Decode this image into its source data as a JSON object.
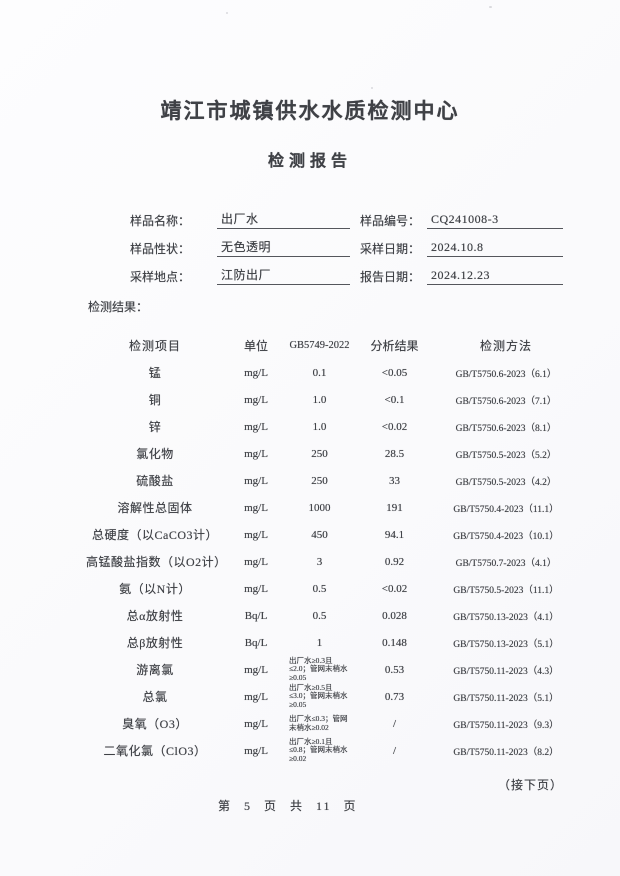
{
  "title": "靖江市城镇供水水质检测中心",
  "subtitle": "检测报告",
  "info": {
    "rows": [
      {
        "left_label": "样品名称：",
        "left_value": "出厂水",
        "right_label": "样品编号：",
        "right_value": "CQ241008-3"
      },
      {
        "left_label": "样品性状：",
        "left_value": "无色透明",
        "right_label": "采样日期：",
        "right_value": "2024.10.8"
      },
      {
        "left_label": "采样地点：",
        "left_value": "江防出厂",
        "right_label": "报告日期：",
        "right_value": "2024.12.23"
      }
    ]
  },
  "results_label": "检测结果：",
  "table": {
    "headers": [
      "检测项目",
      "单位",
      "GB5749-2022",
      "分析结果",
      "检测方法"
    ],
    "rows": [
      [
        "锰",
        "mg/L",
        "0.1",
        "<0.05",
        "GB/T5750.6-2023（6.1）"
      ],
      [
        "铜",
        "mg/L",
        "1.0",
        "<0.1",
        "GB/T5750.6-2023（7.1）"
      ],
      [
        "锌",
        "mg/L",
        "1.0",
        "<0.02",
        "GB/T5750.6-2023（8.1）"
      ],
      [
        "氯化物",
        "mg/L",
        "250",
        "28.5",
        "GB/T5750.5-2023（5.2）"
      ],
      [
        "硫酸盐",
        "mg/L",
        "250",
        "33",
        "GB/T5750.5-2023（4.2）"
      ],
      [
        "溶解性总固体",
        "mg/L",
        "1000",
        "191",
        "GB/T5750.4-2023（11.1）"
      ],
      [
        "总硬度（以CaCO3计）",
        "mg/L",
        "450",
        "94.1",
        "GB/T5750.4-2023（10.1）"
      ],
      [
        "高锰酸盐指数（以O2计）",
        "mg/L",
        "3",
        "0.92",
        "GB/T5750.7-2023（4.1）"
      ],
      [
        "氨（以N计）",
        "mg/L",
        "0.5",
        "<0.02",
        "GB/T5750.5-2023（11.1）"
      ],
      [
        "总α放射性",
        "Bq/L",
        "0.5",
        "0.028",
        "GB/T5750.13-2023（4.1）"
      ],
      [
        "总β放射性",
        "Bq/L",
        "1",
        "0.148",
        "GB/T5750.13-2023（5.1）"
      ],
      [
        "游离氯",
        "mg/L",
        "出厂水≥0.3且≤2.0；管网末梢水≥0.05",
        "0.53",
        "GB/T5750.11-2023（4.3）"
      ],
      [
        "总氯",
        "mg/L",
        "出厂水≥0.5且≤3.0；管网末梢水≥0.05",
        "0.73",
        "GB/T5750.11-2023（5.1）"
      ],
      [
        "臭氧（O3）",
        "mg/L",
        "出厂水≤0.3；管网末梢水≥0.02",
        "/",
        "GB/T5750.11-2023（9.3）"
      ],
      [
        "二氧化氯（ClO3）",
        "mg/L",
        "出厂水≥0.1且≤0.8；管网末梢水≥0.02",
        "/",
        "GB/T5750.11-2023（8.2）"
      ]
    ]
  },
  "footer": {
    "continue_note": "（接下页）",
    "page_note": "第 5 页 共 11 页"
  }
}
